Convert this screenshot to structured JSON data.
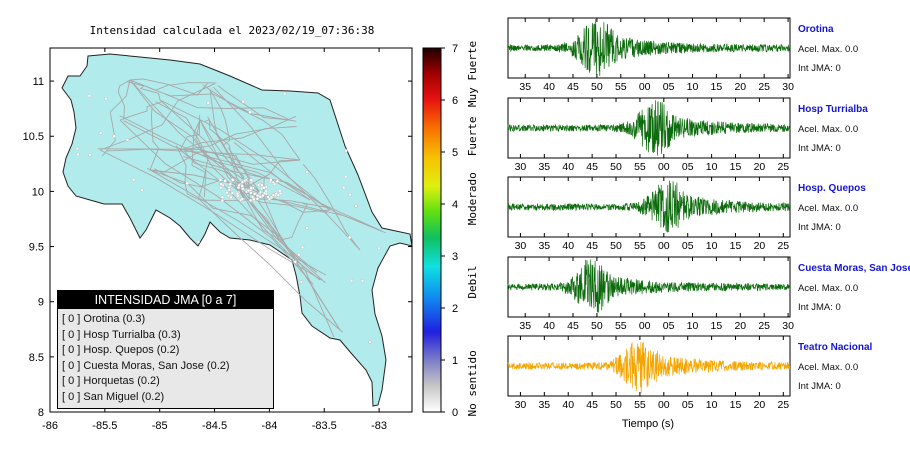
{
  "title": "Intensidad calculada el 2023/02/19_07:36:38",
  "colors": {
    "land": "#b2ebec",
    "land_border": "#222222",
    "road": "#a8a8a8",
    "trace_green": "#0c6b0c",
    "trace_orange": "#f5a500",
    "station_label": "#1515d0"
  },
  "chart_data": [
    {
      "type": "map",
      "title": "Intensidad calculada el 2023/02/19_07:36:38",
      "x_ticks": [
        "-86",
        "-85.5",
        "-85",
        "-84.5",
        "-84",
        "-83.5",
        "-83"
      ],
      "y_ticks": [
        "8",
        "8.5",
        "9",
        "9.5",
        "10",
        "10.5",
        "11"
      ],
      "xlim": [
        -86,
        -82.7
      ],
      "ylim": [
        8,
        11.3
      ],
      "colorbar": {
        "range": [
          0,
          7
        ],
        "ticks": [
          "0",
          "1",
          "2",
          "3",
          "4",
          "5",
          "6",
          "7"
        ],
        "labels": [
          "No sentido",
          "Debil",
          "Moderado",
          "Fuerte",
          "Muy Fuerte"
        ]
      },
      "legend": {
        "header": "INTENSIDAD JMA [0 a 7]",
        "entries": [
          {
            "tag": "[ 0 ]",
            "name": "Orotina (0.3)"
          },
          {
            "tag": "[ 0 ]",
            "name": "Hosp Turrialba (0.3)"
          },
          {
            "tag": "[ 0 ]",
            "name": "Hosp. Quepos (0.2)"
          },
          {
            "tag": "[ 0 ]",
            "name": "Cuesta Moras, San Jose (0.2)"
          },
          {
            "tag": "[ 0 ]",
            "name": "Horquetas (0.2)"
          },
          {
            "tag": "[ 0 ]",
            "name": "San Miguel (0.2)"
          }
        ]
      }
    },
    {
      "type": "line",
      "xlabel": "Tiempo (s)",
      "series": [
        {
          "name": "Orotina",
          "accel": "Acel. Max. 0.0",
          "jma": "Int JMA: 0",
          "color": "#0c6b0c",
          "ticks": [
            "35",
            "40",
            "45",
            "50",
            "55",
            "00",
            "05",
            "10",
            "15",
            "20",
            "25",
            "30"
          ],
          "tick_start": 32.2,
          "burst_center": 51,
          "amp": 0.95
        },
        {
          "name": "Hosp Turrialba",
          "accel": "Acel. Max. 0.0",
          "jma": "Int JMA: 0",
          "color": "#0c6b0c",
          "ticks": [
            "30",
            "35",
            "40",
            "45",
            "50",
            "55",
            "00",
            "05",
            "10",
            "15",
            "20",
            "25"
          ],
          "tick_start": 28.2,
          "burst_center": 59,
          "amp": 0.9
        },
        {
          "name": "Hosp. Quepos",
          "accel": "Acel. Max. 0.0",
          "jma": "Int JMA: 0",
          "color": "#0c6b0c",
          "ticks": [
            "30",
            "35",
            "40",
            "45",
            "50",
            "55",
            "00",
            "05",
            "10",
            "15",
            "20",
            "25"
          ],
          "tick_start": 28.2,
          "burst_center": 62,
          "amp": 0.9
        },
        {
          "name": "Cuesta Moras, San Jose",
          "accel": "Acel. Max. 0.0",
          "jma": "Int JMA: 0",
          "color": "#0c6b0c",
          "ticks": [
            "35",
            "40",
            "45",
            "50",
            "55",
            "00",
            "05",
            "10",
            "15",
            "20",
            "25",
            "30"
          ],
          "tick_start": 32.2,
          "burst_center": 50,
          "amp": 0.8
        },
        {
          "name": "Teatro Nacional",
          "accel": "Acel. Max. 0.0",
          "jma": "Int JMA: 0",
          "color": "#f5a500",
          "ticks": [
            "30",
            "35",
            "40",
            "45",
            "50",
            "55",
            "00",
            "05",
            "10",
            "15",
            "20",
            "25"
          ],
          "tick_start": 28.2,
          "burst_center": 56,
          "amp": 0.9
        }
      ]
    }
  ]
}
